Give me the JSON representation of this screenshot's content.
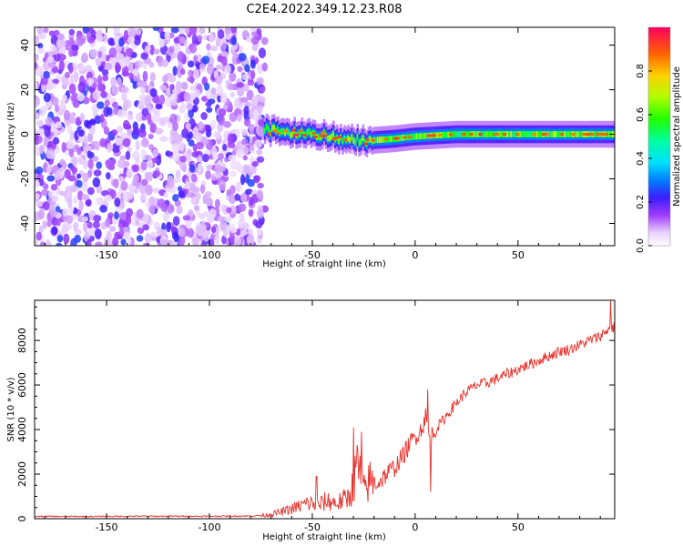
{
  "title": "C2E4.2022.349.12.23.R08",
  "chart_data": [
    {
      "type": "heatmap",
      "xlabel": "Height of straight line (km)",
      "ylabel": "Frequency (Hz)",
      "xlim": [
        -185,
        97
      ],
      "ylim": [
        -50,
        48
      ],
      "xticks": [
        -150,
        -100,
        -50,
        0,
        50
      ],
      "yticks": [
        -40,
        -20,
        0,
        20,
        40
      ],
      "colorbar": {
        "label": "Normalized spectral amplitude",
        "range": [
          0,
          1
        ],
        "ticks": [
          "0.0",
          "0.2",
          "0.4",
          "0.6",
          "0.8"
        ],
        "tick_values": [
          0.0,
          0.2,
          0.4,
          0.6,
          0.8
        ]
      },
      "regions": [
        {
          "name": "noise",
          "x": [
            -185,
            -73
          ],
          "y": [
            -50,
            48
          ],
          "amplitude_range": [
            0.05,
            0.3
          ]
        },
        {
          "name": "signal-band",
          "x": [
            -73,
            97
          ],
          "center_frequency_hz": [
            {
              "x": -73,
              "f": 2
            },
            {
              "x": -60,
              "f": 1
            },
            {
              "x": -45,
              "f": 0
            },
            {
              "x": -35,
              "f": -2
            },
            {
              "x": -25,
              "f": -3
            },
            {
              "x": -10,
              "f": -2
            },
            {
              "x": 0,
              "f": -1
            },
            {
              "x": 20,
              "f": 0
            },
            {
              "x": 50,
              "f": 0
            },
            {
              "x": 97,
              "f": 0
            }
          ],
          "amplitude_range": [
            0.3,
            1.0
          ]
        }
      ]
    },
    {
      "type": "line",
      "xlabel": "Height of straight line (km)",
      "ylabel": "SNR (10 * v/v)",
      "xlim": [
        -185,
        97
      ],
      "ylim": [
        0,
        9800
      ],
      "xticks": [
        -150,
        -100,
        -50,
        0,
        50
      ],
      "yticks": [
        0,
        2000,
        4000,
        6000,
        8000
      ],
      "series": [
        {
          "color": "#e8302a",
          "x": [
            -185,
            -160,
            -130,
            -100,
            -80,
            -73,
            -65,
            -58,
            -52,
            -47,
            -43,
            -38,
            -33,
            -30,
            -28,
            -25,
            -22,
            -18,
            -14,
            -10,
            -6,
            -3,
            0,
            3,
            5,
            7,
            10,
            15,
            20,
            25,
            30,
            35,
            40,
            45,
            50,
            55,
            60,
            65,
            70,
            75,
            80,
            85,
            90,
            94,
            97
          ],
          "y": [
            100,
            100,
            110,
            110,
            120,
            150,
            300,
            500,
            700,
            600,
            800,
            700,
            900,
            1500,
            2500,
            1200,
            1700,
            1600,
            2000,
            2300,
            2800,
            3300,
            3700,
            4000,
            4600,
            3600,
            4000,
            4600,
            5200,
            5700,
            6000,
            6100,
            6300,
            6500,
            6700,
            6900,
            7100,
            7300,
            7500,
            7600,
            7800,
            8000,
            8200,
            8500,
            8600
          ]
        }
      ],
      "spikes": [
        {
          "x": -48,
          "y": 1900
        },
        {
          "x": -30,
          "y": 4100
        },
        {
          "x": -26,
          "y": 3900
        },
        {
          "x": 6,
          "y": 5800
        },
        {
          "x": 7.5,
          "y": 1200
        },
        {
          "x": 95,
          "y": 9800
        }
      ]
    }
  ]
}
